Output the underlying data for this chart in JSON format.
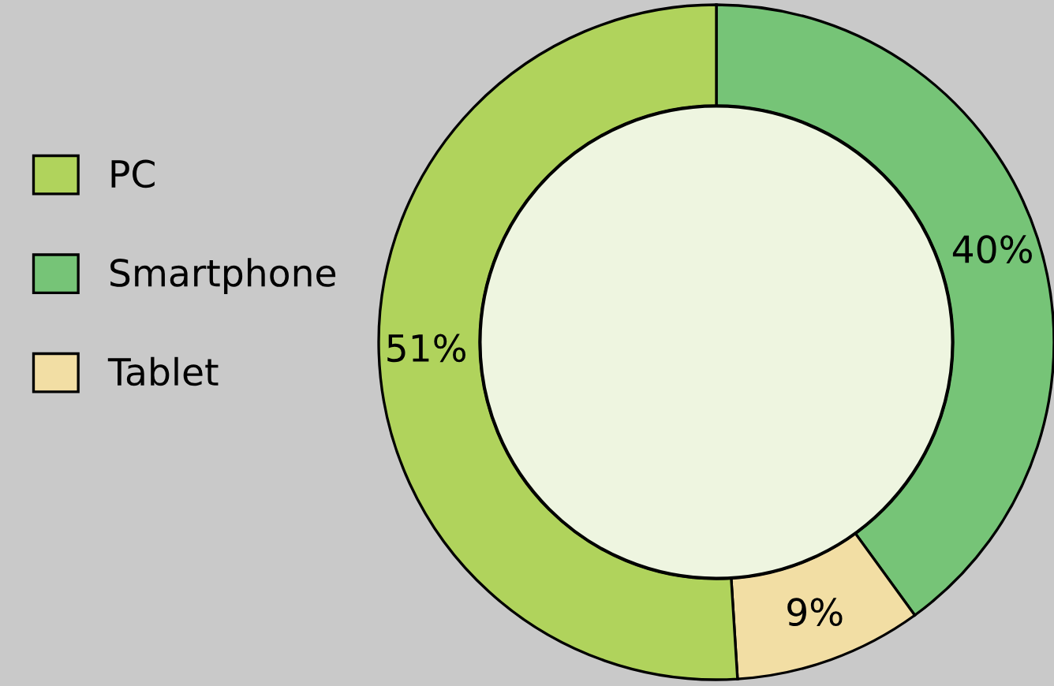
{
  "chart_data": {
    "type": "donut",
    "categories": [
      "PC",
      "Smartphone",
      "Tablet"
    ],
    "values": [
      51,
      40,
      9
    ],
    "colors": [
      "#b0d35c",
      "#76c477",
      "#f2dea4"
    ],
    "value_labels": [
      "51%",
      "40%",
      "9%"
    ],
    "legend": "left"
  }
}
